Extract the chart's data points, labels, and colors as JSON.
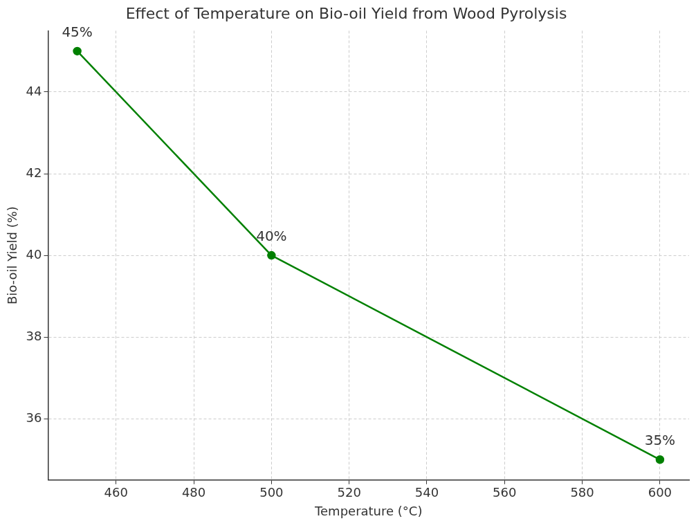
{
  "chart_data": {
    "type": "line",
    "title": "Effect of Temperature on Bio-oil Yield from Wood Pyrolysis",
    "xlabel": "Temperature (°C)",
    "ylabel": "Bio-oil Yield (%)",
    "x": [
      450,
      500,
      600
    ],
    "series": [
      {
        "color": "#008000",
        "values": [
          45,
          40,
          35
        ],
        "value_labels": [
          "45%",
          "40%",
          "35%"
        ]
      }
    ],
    "xlim": [
      442.5,
      607.5
    ],
    "ylim": [
      34.5,
      45.5
    ],
    "xticks": [
      460,
      480,
      500,
      520,
      540,
      560,
      580,
      600
    ],
    "yticks": [
      36,
      38,
      40,
      42,
      44
    ],
    "grid": true,
    "marker": "circle",
    "line_style": "solid",
    "legend": false
  }
}
